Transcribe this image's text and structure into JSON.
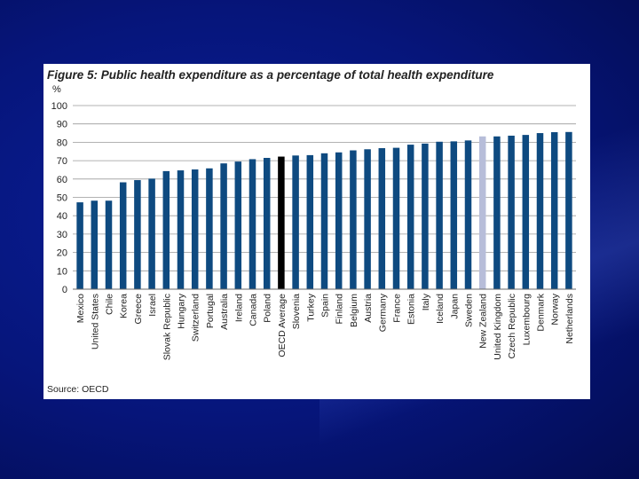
{
  "chart_data": {
    "type": "bar",
    "title": "Figure 5: Public health expenditure as a percentage of total health expenditure",
    "ylabel": "%",
    "xlabel": "",
    "ylim": [
      0,
      100
    ],
    "yticks": [
      0,
      10,
      20,
      30,
      40,
      50,
      60,
      70,
      80,
      90,
      100
    ],
    "grid": true,
    "source": "Source: OECD",
    "categories": [
      "Mexico",
      "United States",
      "Chile",
      "Korea",
      "Greece",
      "Israel",
      "Slovak Republic",
      "Hungary",
      "Switzerland",
      "Portugal",
      "Australia",
      "Ireland",
      "Canada",
      "Poland",
      "OECD Average",
      "Slovenia",
      "Turkey",
      "Spain",
      "Finland",
      "Belgium",
      "Austria",
      "Germany",
      "France",
      "Estonia",
      "Italy",
      "Iceland",
      "Japan",
      "Sweden",
      "New Zealand",
      "United Kingdom",
      "Czech Republic",
      "Luxembourg",
      "Denmark",
      "Norway",
      "Netherlands"
    ],
    "values": [
      47.3,
      48.2,
      48.2,
      58.2,
      59.4,
      60.2,
      64.3,
      64.7,
      65.2,
      65.8,
      68.5,
      69.5,
      70.8,
      71.5,
      72.2,
      72.8,
      73.0,
      74.0,
      74.5,
      75.6,
      76.2,
      76.8,
      77.0,
      78.7,
      79.3,
      80.3,
      80.5,
      81.0,
      83.2,
      83.2,
      83.6,
      84.0,
      85.0,
      85.5,
      85.6
    ],
    "colors": {
      "default": "#0e4a80",
      "OECD Average": "#000000",
      "New Zealand": "#b7bdd9",
      "grid": "#9a9a9a"
    }
  }
}
